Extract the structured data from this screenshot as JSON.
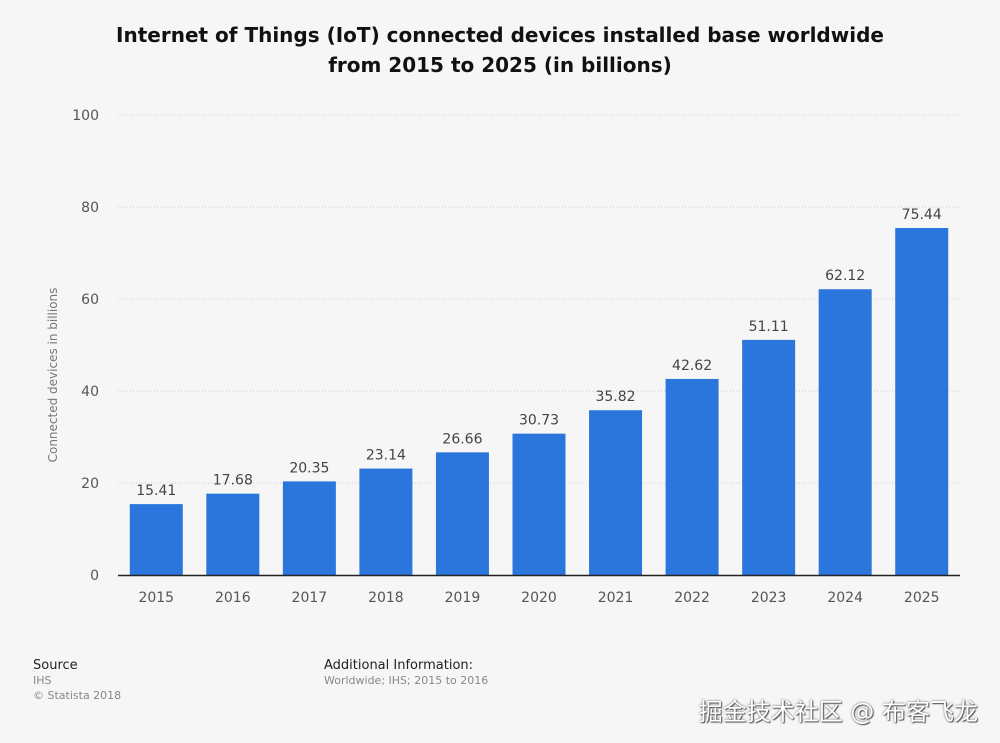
{
  "chart_data": {
    "type": "bar",
    "title": "Internet of Things (IoT) connected devices installed base worldwide from 2015 to 2025 (in billions)",
    "title_lines": [
      "Internet of Things (IoT) connected devices installed base worldwide",
      "from 2015 to 2025 (in billions)"
    ],
    "categories": [
      "2015",
      "2016",
      "2017",
      "2018",
      "2019",
      "2020",
      "2021",
      "2022",
      "2023",
      "2024",
      "2025"
    ],
    "values": [
      15.41,
      17.68,
      20.35,
      23.14,
      26.66,
      30.73,
      35.82,
      42.62,
      51.11,
      62.12,
      75.44
    ],
    "xlabel": "",
    "ylabel": "Connected devices in billions",
    "ylim": [
      0,
      100
    ],
    "yticks": [
      0,
      20,
      40,
      60,
      80,
      100
    ],
    "grid": true,
    "bar_color": "#2a76dd"
  },
  "footer": {
    "source_label": "Source",
    "source_value": "IHS",
    "copyright": "© Statista 2018",
    "additional_label": "Additional Information:",
    "additional_value": "Worldwide; IHS; 2015 to 2016"
  },
  "watermark": "掘金技术社区 @ 布客飞龙"
}
